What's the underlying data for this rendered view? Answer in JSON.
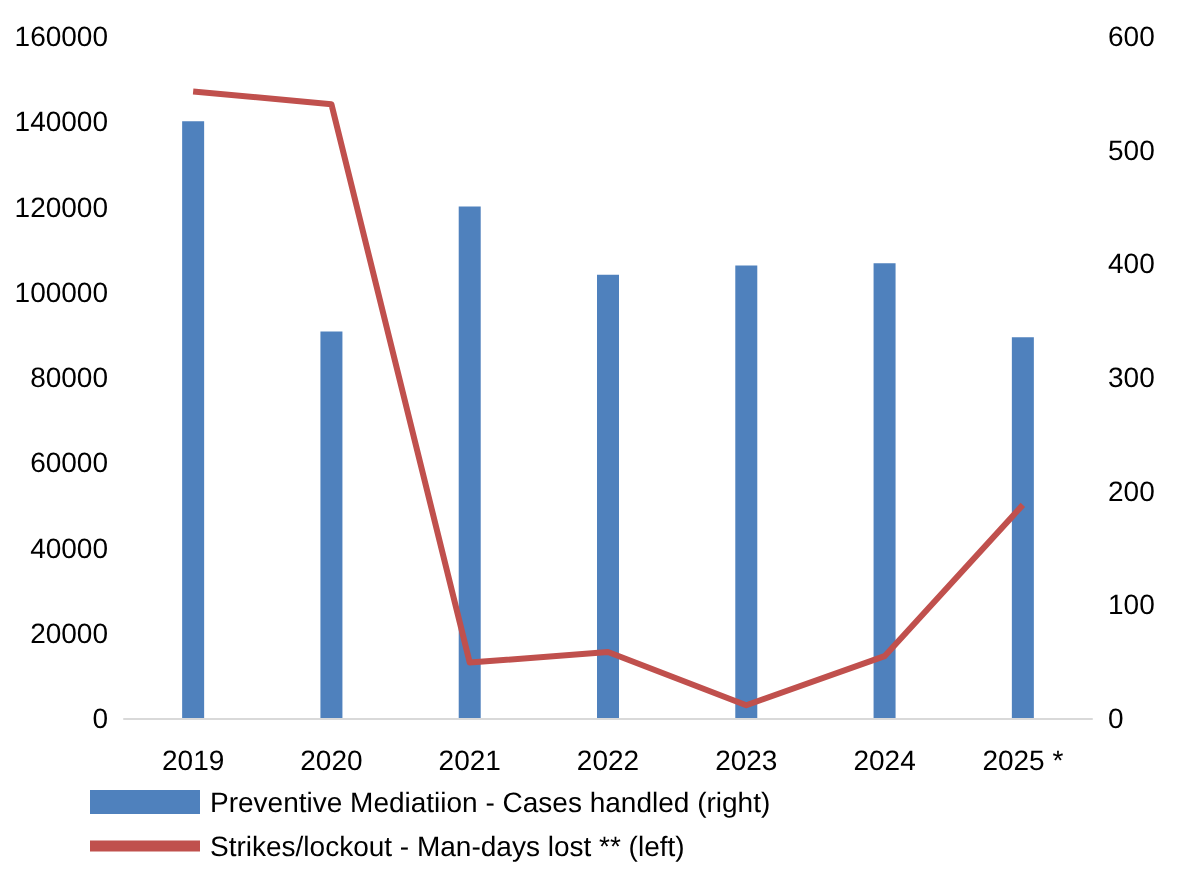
{
  "chart_data": {
    "type": "bar",
    "categories": [
      "2019",
      "2020",
      "2021",
      "2022",
      "2023",
      "2024",
      "2025 *"
    ],
    "series": [
      {
        "name": "Preventive Mediatiion - Cases handled (right)",
        "axis": "y2",
        "color": "#4f81bd",
        "values": [
          525,
          340,
          450,
          390,
          398,
          400,
          335
        ]
      },
      {
        "name": "Strikes/lockout - Man-days lost ** (left)",
        "type": "line",
        "color": "#c0504d",
        "marker": "none",
        "values": [
          147000,
          144000,
          13000,
          15500,
          3000,
          14500,
          50000
        ]
      }
    ],
    "ylim": [
      0,
      160000
    ],
    "yticks": [
      0,
      20000,
      40000,
      60000,
      80000,
      100000,
      120000,
      140000,
      160000
    ],
    "y2lim": [
      0,
      600
    ],
    "y2ticks": [
      0,
      100,
      200,
      300,
      400,
      500,
      600
    ],
    "grid": false,
    "legend": "bottom"
  }
}
